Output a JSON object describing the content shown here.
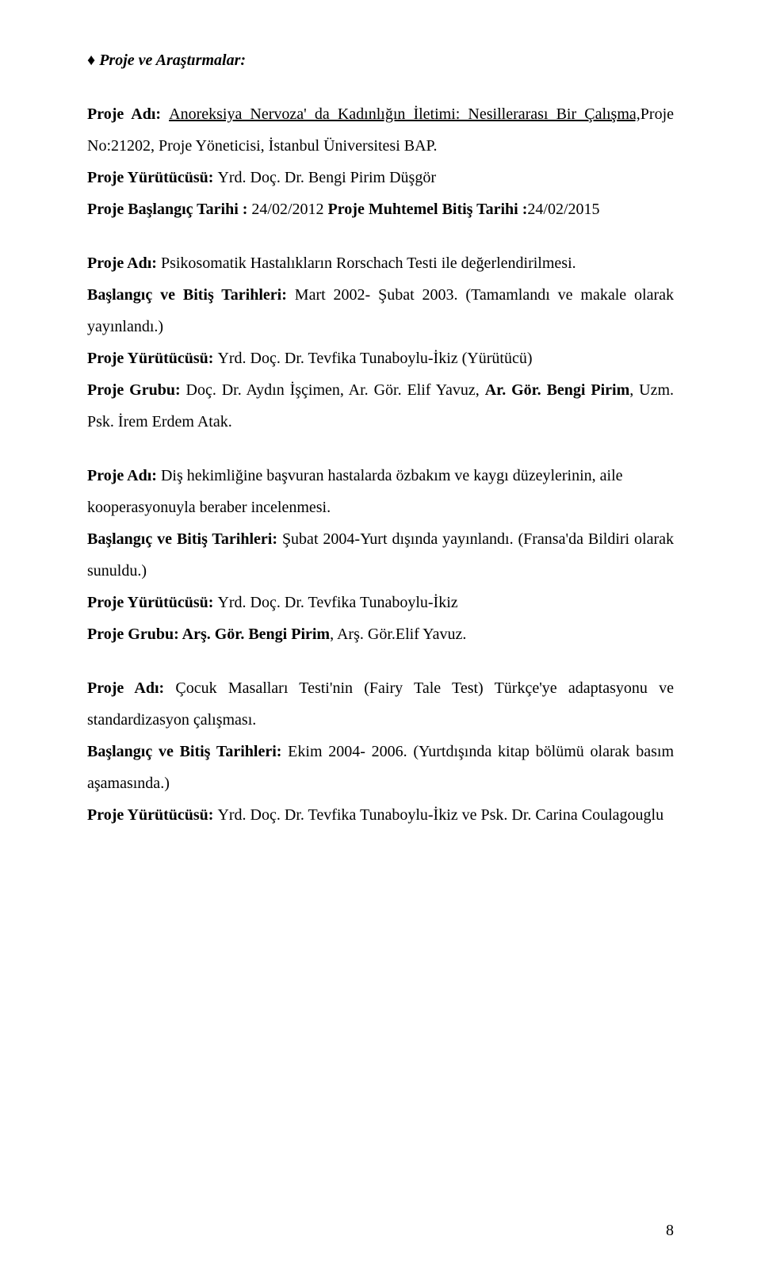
{
  "heading": "Proje ve Araştırmalar:",
  "p1": {
    "label1": "Proje Adı: ",
    "title": "Anoreksiya Nervoza' da Kadınlığın İletimi: Nesillerarası Bir Çalışma,",
    "rest1": "Proje No:21202, Proje Yöneticisi, İstanbul Üniversitesi BAP.",
    "label2": "Proje Yürütücüsü: ",
    "rest2": "Yrd. Doç. Dr. Bengi Pirim Düşgör",
    "label3": "Proje Başlangıç Tarihi : ",
    "date1": "24/02/2012  ",
    "label4": "Proje Muhtemel Bitiş Tarihi :",
    "date2": "24/02/2015"
  },
  "p2": {
    "label1": "Proje Adı: ",
    "rest1": "Psikosomatik Hastalıkların Rorschach Testi ile değerlendirilmesi.",
    "label2": "Başlangıç ve Bitiş Tarihleri: ",
    "rest2": "Mart 2002- Şubat 2003. (Tamamlandı ve makale olarak yayınlandı.)",
    "label3": "Proje Yürütücüsü: ",
    "rest3": "Yrd. Doç. Dr. Tevfika Tunaboylu-İkiz (Yürütücü)",
    "label4": "Proje Grubu: ",
    "rest4a": "Doç. Dr. Aydın İşçimen, Ar. Gör. Elif Yavuz, ",
    "rest4b": "Ar. Gör. Bengi Pirim",
    "rest4c": ", Uzm. Psk. İrem Erdem Atak."
  },
  "p3": {
    "label1": "Proje Adı: ",
    "rest1": "Diş hekimliğine başvuran hastalarda özbakım ve kaygı düzeylerinin, aile",
    "rest1b": "kooperasyonuyla beraber incelenmesi.",
    "label2": "Başlangıç ve Bitiş Tarihleri: ",
    "rest2": "Şubat 2004-Yurt dışında yayınlandı. (Fransa'da Bildiri olarak sunuldu.)",
    "label3": "Proje Yürütücüsü:  ",
    "rest3": "Yrd. Doç. Dr. Tevfika Tunaboylu-İkiz",
    "label4": "Proje Grubu: Arş. Gör. Bengi Pirim",
    "rest4": ", Arş. Gör.Elif Yavuz."
  },
  "p4": {
    "label1": "Proje Adı: ",
    "rest1": "Çocuk Masalları Testi'nin (Fairy Tale Test) Türkçe'ye adaptasyonu ve standardizasyon çalışması.",
    "label2": "Başlangıç ve Bitiş Tarihleri: ",
    "rest2": "Ekim 2004- 2006. (Yurtdışında kitap bölümü olarak basım aşamasında.)",
    "label3": "Proje Yürütücüsü: ",
    "rest3": "Yrd. Doç. Dr. Tevfika Tunaboylu-İkiz ve Psk. Dr. Carina Coulagouglu"
  },
  "pageNumber": "8"
}
